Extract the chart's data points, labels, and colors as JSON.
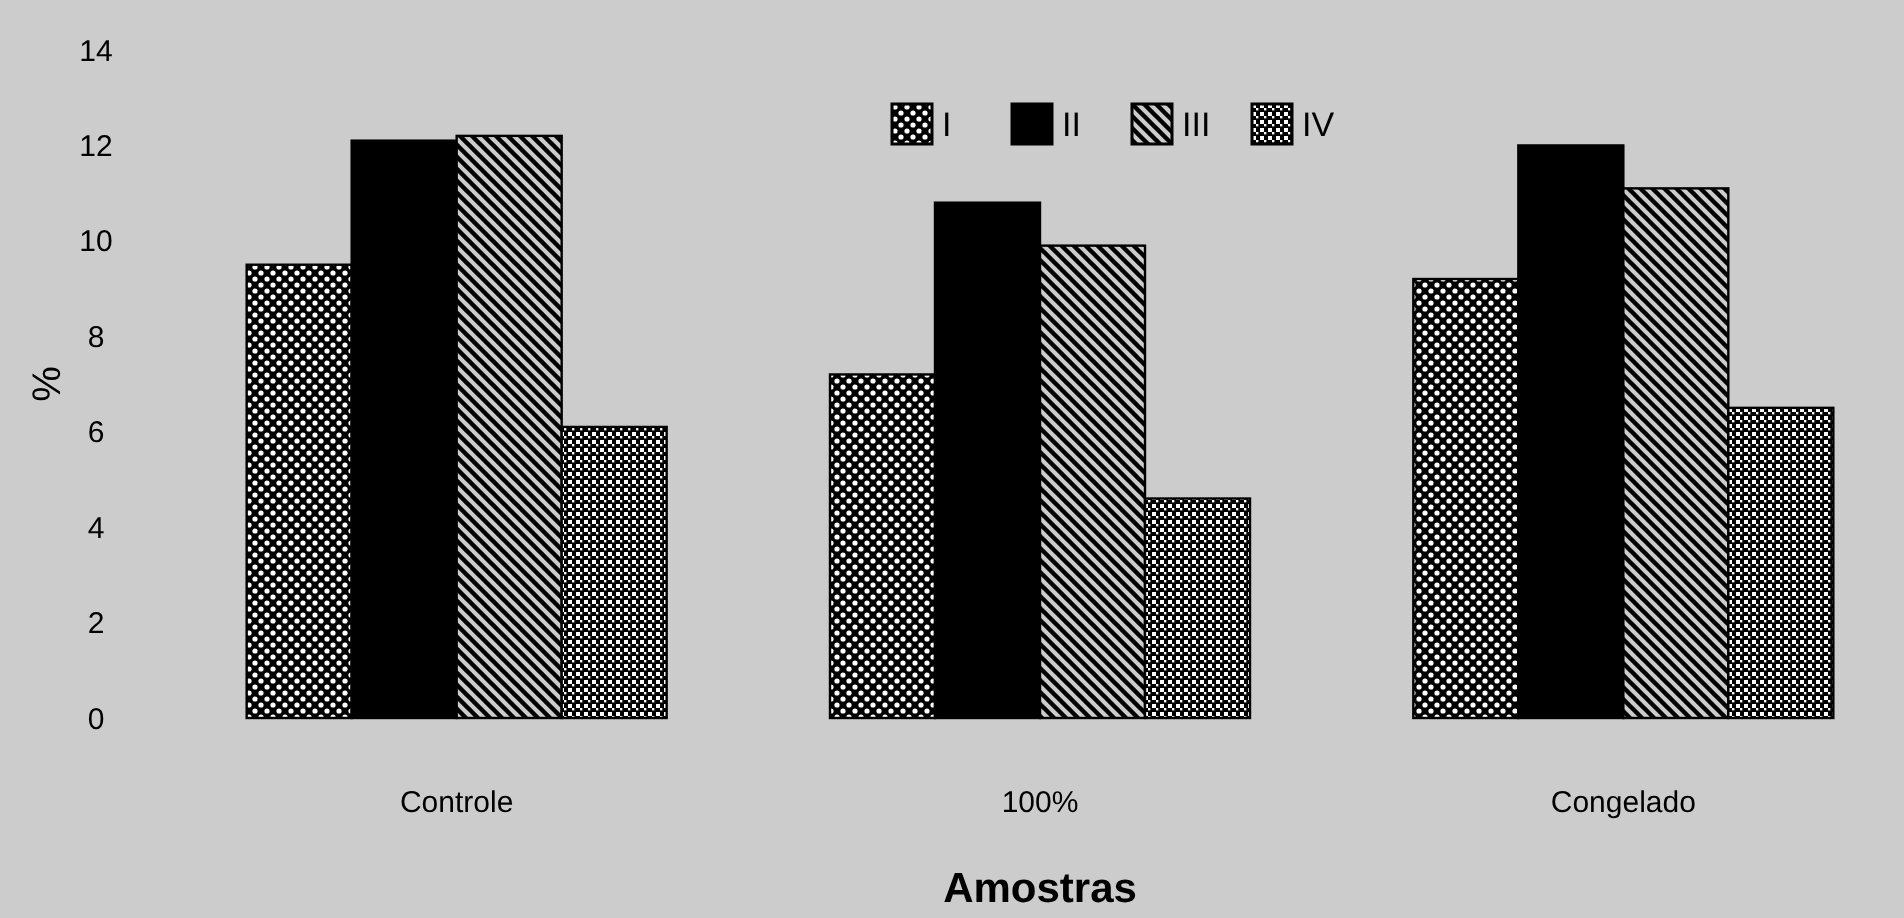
{
  "chart_data": {
    "type": "bar",
    "xlabel": "Amostras",
    "ylabel": "%",
    "categories": [
      "Controle",
      "100%",
      "Congelado"
    ],
    "series": [
      {
        "name": "I",
        "color": "#000000",
        "values": [
          9.5,
          7.2,
          9.2
        ]
      },
      {
        "name": "II",
        "color": "#000000",
        "values": [
          12.1,
          10.8,
          12.0
        ]
      },
      {
        "name": "III",
        "color": "#000000",
        "values": [
          12.2,
          9.9,
          11.1
        ]
      },
      {
        "name": "IV",
        "color": "#000000",
        "values": [
          6.1,
          4.6,
          6.5
        ]
      }
    ],
    "ylim": [
      0,
      14
    ],
    "yticks": [
      0,
      2,
      4,
      6,
      8,
      10,
      12,
      14
    ],
    "grid": false,
    "legend": "top"
  }
}
